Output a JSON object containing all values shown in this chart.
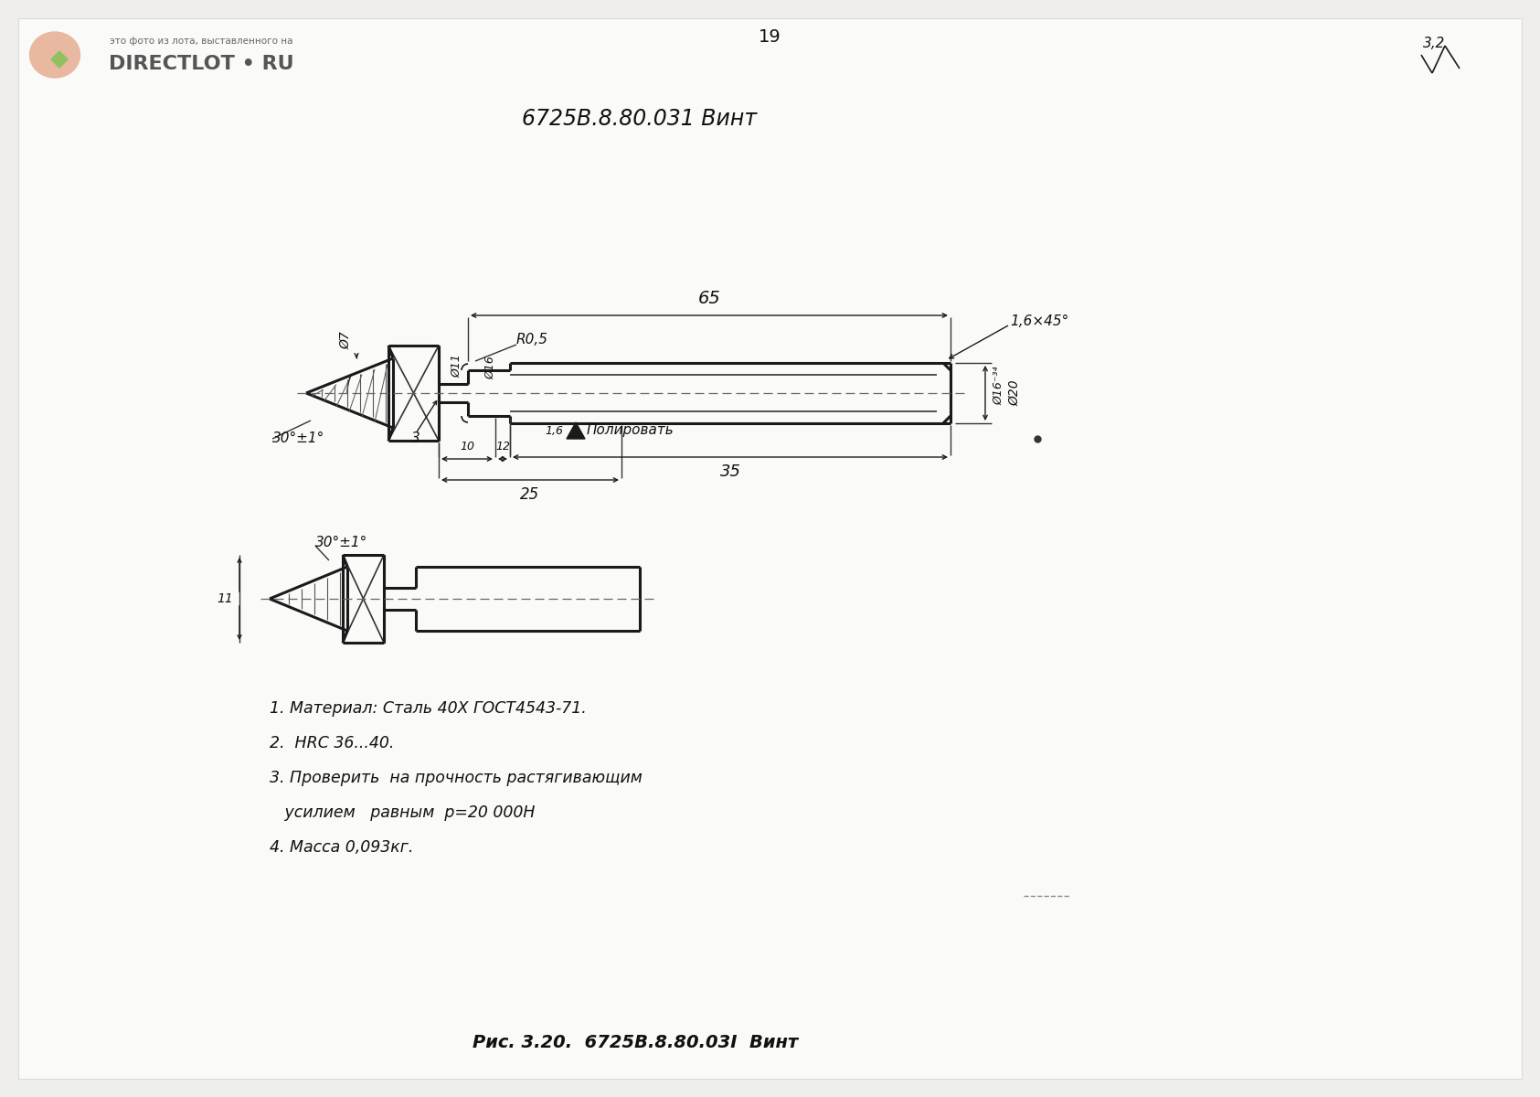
{
  "bg_color": "#f0eeeb",
  "title_text": "6725B.8.80.031 Винт",
  "page_number": "19",
  "surface_roughness": "3,2",
  "notes": [
    "1. Материал: Сталь 40Х ГОСТ4543-71.",
    "2.  HRC 36...40.",
    "3. Проверить  на прочность растягивающим",
    "   усилием   равным  р=20 000Н",
    "4. Масса 0,093кг."
  ],
  "caption": "Рис. 3.20.  6725В.8.80.03I  Винт",
  "line_color": "#1a1a1a",
  "text_color": "#111111",
  "gray_color": "#888888",
  "dim_color": "#1a1a1a"
}
